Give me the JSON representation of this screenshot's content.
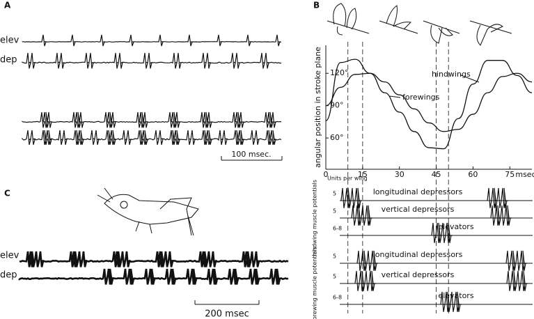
{
  "panels": {
    "a": {
      "label": "A",
      "trace_labels": [
        "elev",
        "dep"
      ],
      "scale": "100 msec."
    },
    "b": {
      "label": "B",
      "units_header": "Units per wing",
      "hindwing": {
        "label": "hindwing muscle potentials",
        "rows": [
          {
            "units": "5",
            "name": "longitudinal depressors"
          },
          {
            "units": "5",
            "name": "vertical depressors"
          },
          {
            "units": "6-8",
            "name": "elevators"
          }
        ]
      },
      "forewing": {
        "label": "forewing muscle potentials",
        "rows": [
          {
            "units": "5",
            "name": "longitudinal depressors"
          },
          {
            "units": "5",
            "name": "vertical depressors"
          },
          {
            "units": "6-8",
            "name": "elevators"
          }
        ]
      }
    },
    "c": {
      "label": "C",
      "trace_labels": [
        "elev",
        "dep"
      ],
      "scale": "200 msec"
    }
  },
  "chart_data": {
    "type": "line",
    "y_label": "angular position in stroke plane",
    "x_label": "msec",
    "x": [
      0,
      6,
      12,
      18,
      24,
      30,
      36,
      42,
      48,
      54,
      60,
      66,
      72,
      78,
      84
    ],
    "series": [
      {
        "name": "hindwings",
        "color": "#111111",
        "values": [
          76,
          130,
          133,
          120,
          102,
          84,
          66,
          51,
          50,
          78,
          110,
          132,
          132,
          118,
          102
        ]
      },
      {
        "name": "forewings",
        "color": "#111111",
        "values": [
          90,
          107,
          119,
          120,
          112,
          100,
          87,
          74,
          66,
          68,
          82,
          102,
          117,
          120,
          112
        ]
      }
    ],
    "xlim": [
      0,
      84
    ],
    "ylim": [
      31,
      146
    ],
    "xticks": [
      0,
      15,
      30,
      45,
      60,
      75
    ],
    "yticks": [
      {
        "value": 60,
        "label": "60°"
      },
      {
        "value": 90,
        "label": "90°"
      },
      {
        "value": 120,
        "label": "120°"
      }
    ]
  }
}
